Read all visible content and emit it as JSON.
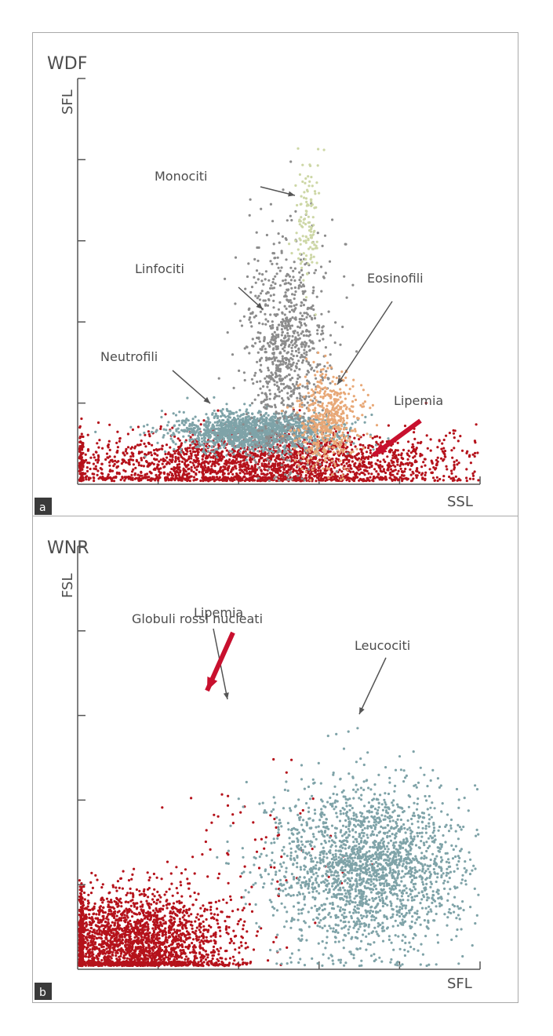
{
  "panels": [
    {
      "id": "a",
      "title": "WDF",
      "letter": "a",
      "xlabel": "SSL",
      "ylabel": "SFL",
      "annotations": {
        "monociti": "Monociti",
        "linfociti": "Linfociti",
        "eosinofili": "Eosinofili",
        "neutrofili": "Neutrofili",
        "lipemia": "Lipemia"
      }
    },
    {
      "id": "b",
      "title": "WNR",
      "letter": "b",
      "xlabel": "SFL",
      "ylabel": "FSL",
      "annotations": {
        "globuli": "Globuli rossi nucleati",
        "leucociti": "Leucociti",
        "lipemia": "Lipemia"
      }
    }
  ],
  "colors": {
    "lipemia": "#b5121b",
    "neutrofili": "#7fa3a8",
    "linfociti": "#8c8c8c",
    "monociti": "#cdd7a6",
    "eosinofili": "#e8a877",
    "leucociti": "#7fa3a8",
    "globuli": "#b5121b",
    "axis": "#555555",
    "arrow_red": "#c8102e"
  },
  "chart_data": [
    {
      "type": "scatter",
      "panel": "WDF",
      "xlabel": "SSL",
      "ylabel": "SFL",
      "xlim": [
        0,
        5
      ],
      "ylim": [
        0,
        5
      ],
      "grid": false,
      "clusters": [
        {
          "label": "Lipemia",
          "color": "#b5121b",
          "center_x": 2.3,
          "center_y": 0.25,
          "spread_x": 1.3,
          "spread_y": 0.2,
          "count": 2600
        },
        {
          "label": "Neutrofili",
          "color": "#7fa3a8",
          "center_x": 2.2,
          "center_y": 0.65,
          "spread_x": 0.5,
          "spread_y": 0.12,
          "count": 1500
        },
        {
          "label": "Linfociti",
          "color": "#8c8c8c",
          "center_x": 2.6,
          "center_y": 1.6,
          "spread_x": 0.25,
          "spread_y": 0.7,
          "count": 900
        },
        {
          "label": "Monociti",
          "color": "#cdd7a6",
          "center_x": 2.85,
          "center_y": 3.2,
          "spread_x": 0.08,
          "spread_y": 0.35,
          "count": 120
        },
        {
          "label": "Eosinofili",
          "color": "#e8a877",
          "center_x": 3.1,
          "center_y": 0.8,
          "spread_x": 0.2,
          "spread_y": 0.3,
          "count": 500
        }
      ],
      "annotations": [
        "Monociti",
        "Linfociti",
        "Eosinofili",
        "Neutrofili",
        "Lipemia"
      ]
    },
    {
      "type": "scatter",
      "panel": "WNR",
      "xlabel": "SFL",
      "ylabel": "FSL",
      "xlim": [
        0,
        5
      ],
      "ylim": [
        0,
        5
      ],
      "grid": false,
      "clusters": [
        {
          "label": "Lipemia",
          "color": "#b5121b",
          "center_x": 0.7,
          "center_y": 0.3,
          "spread_x": 0.6,
          "spread_y": 0.3,
          "count": 2500
        },
        {
          "label": "Globuli rossi nucleati",
          "color": "#b5121b",
          "center_x": 2.2,
          "center_y": 1.6,
          "spread_x": 0.6,
          "spread_y": 0.4,
          "count": 60
        },
        {
          "label": "Leucociti",
          "color": "#7fa3a8",
          "center_x": 3.6,
          "center_y": 1.2,
          "spread_x": 0.6,
          "spread_y": 0.5,
          "count": 2200
        }
      ],
      "annotations": [
        "Globuli rossi nucleati",
        "Leucociti",
        "Lipemia"
      ]
    }
  ]
}
